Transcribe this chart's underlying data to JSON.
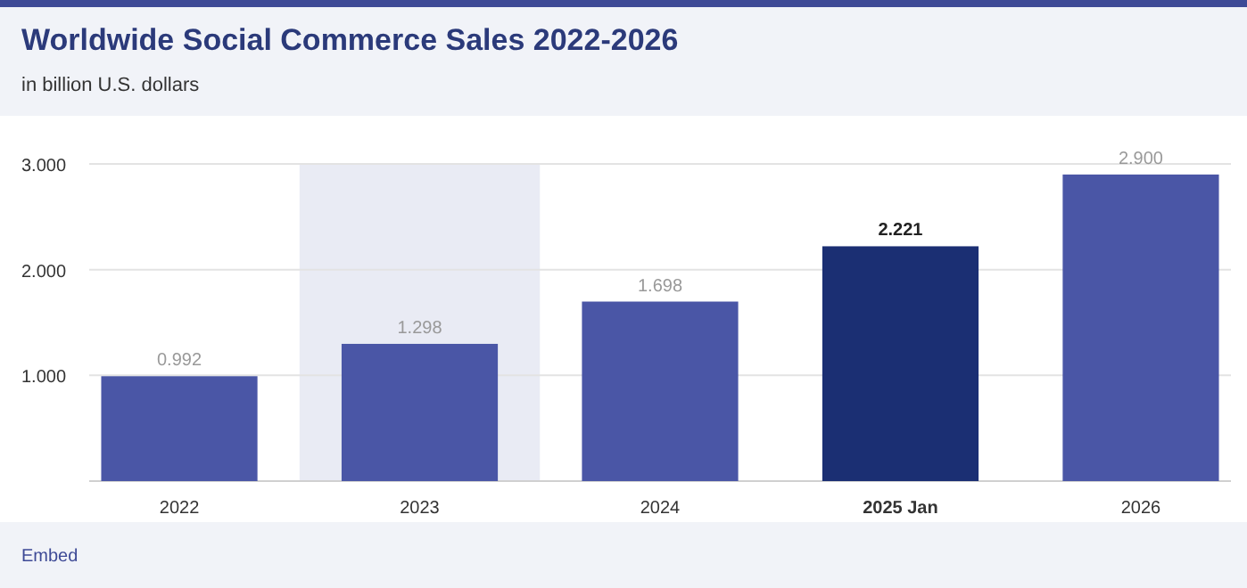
{
  "chart_data": {
    "type": "bar",
    "title": "Worldwide Social Commerce Sales 2022-2026",
    "subtitle": "in billion U.S. dollars",
    "categories": [
      "2022",
      "2023",
      "2024",
      "2025 Jan",
      "2026"
    ],
    "values": [
      0.992,
      1.298,
      1.698,
      2.221,
      2.9
    ],
    "value_labels": [
      "0.992",
      "1.298",
      "1.698",
      "2.221",
      "2.900"
    ],
    "colors": [
      "#4a56a6",
      "#4a56a6",
      "#4a56a6",
      "#1b2f73",
      "#4a56a6"
    ],
    "ylim": [
      0,
      3
    ],
    "yticks": [
      {
        "value": 1,
        "label": "1.000"
      },
      {
        "value": 2,
        "label": "2.000"
      },
      {
        "value": 3,
        "label": "3.000"
      }
    ],
    "grid": "y",
    "bands": [
      {
        "axis": "x",
        "from": "2023",
        "to": "2023",
        "color": "#e9ebf4"
      }
    ],
    "annotations": [
      "Embed"
    ]
  }
}
